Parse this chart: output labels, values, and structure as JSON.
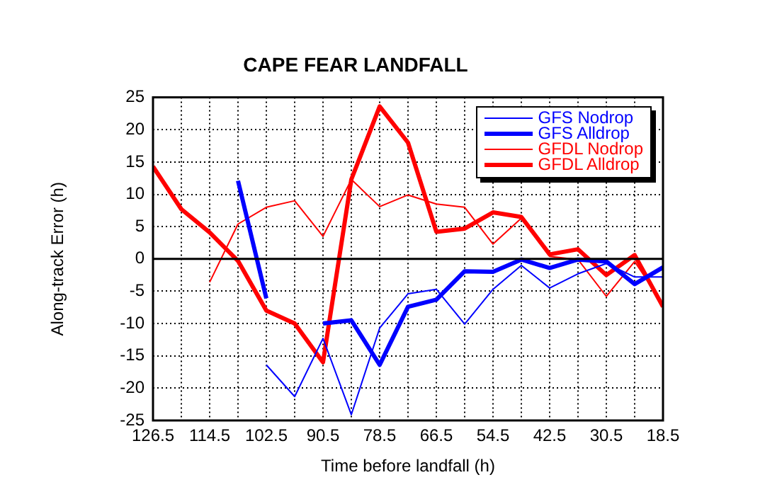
{
  "chart_data": {
    "type": "line",
    "title": "CAPE FEAR LANDFALL",
    "xlabel": "Time before landfall (h)",
    "ylabel": "Along-track Error (h)",
    "x": [
      126.5,
      120.5,
      114.5,
      108.5,
      102.5,
      96.5,
      90.5,
      84.5,
      78.5,
      72.5,
      66.5,
      60.5,
      54.5,
      48.5,
      42.5,
      36.5,
      30.5,
      24.5,
      18.5
    ],
    "series": [
      {
        "name": "GFS Nodrop",
        "color": "#0000ff",
        "values": [
          null,
          null,
          null,
          null,
          -16.4,
          -21.3,
          -12.3,
          -24.1,
          -10.7,
          -5.4,
          -4.7,
          -10.1,
          -4.7,
          -1,
          -4.5,
          -2.3,
          -0.7,
          -2.8,
          -2.8
        ]
      },
      {
        "name": "GFS Alldrop",
        "color": "#0000ff",
        "values": [
          null,
          null,
          null,
          12.1,
          -6.1,
          null,
          -10,
          -9.5,
          -16.4,
          -7.4,
          -6.3,
          -1.9,
          -2,
          -0.1,
          -1.4,
          -0.1,
          -0.4,
          -3.9,
          -1.3
        ]
      },
      {
        "name": "GFDL Nodrop",
        "color": "#ff0000",
        "values": [
          null,
          null,
          -3.6,
          5.4,
          8,
          9,
          3.5,
          12.3,
          8.1,
          9.9,
          8.5,
          8,
          2.3,
          6.3,
          0.4,
          -0.1,
          -5.8,
          -0.4,
          -7
        ]
      },
      {
        "name": "GFDL Alldrop",
        "color": "#ff0000",
        "values": [
          14.3,
          7.7,
          4.1,
          -0.3,
          -8,
          -10,
          -16,
          12.3,
          23.6,
          18,
          4.2,
          4.7,
          7.2,
          6.5,
          0.7,
          1.5,
          -2.5,
          0.6,
          -7.4
        ]
      }
    ],
    "xlim": [
      126.5,
      18.5
    ],
    "xticks": [
      126.5,
      {
        "value": 120.5,
        "label": null
      },
      114.5,
      {
        "value": 108.5,
        "label": null
      },
      102.5,
      {
        "value": 96.5,
        "label": null
      },
      90.5,
      {
        "value": 84.5,
        "label": null
      },
      78.5,
      {
        "value": 72.5,
        "label": null
      },
      66.5,
      {
        "value": 60.5,
        "label": null
      },
      54.5,
      {
        "value": 48.5,
        "label": null
      },
      42.5,
      {
        "value": 36.5,
        "label": null
      },
      30.5,
      {
        "value": 24.5,
        "label": null
      },
      18.5
    ],
    "ylim": [
      -25,
      25
    ],
    "yticks": [
      -25,
      -20,
      -15,
      -10,
      -5,
      0,
      5,
      10,
      15,
      20,
      25
    ],
    "ref_lines": [
      {
        "axis": "y",
        "value": 0,
        "color": "#000000"
      }
    ],
    "grid": true,
    "legend": "top right",
    "marker": "none",
    "line_style": "solid"
  }
}
